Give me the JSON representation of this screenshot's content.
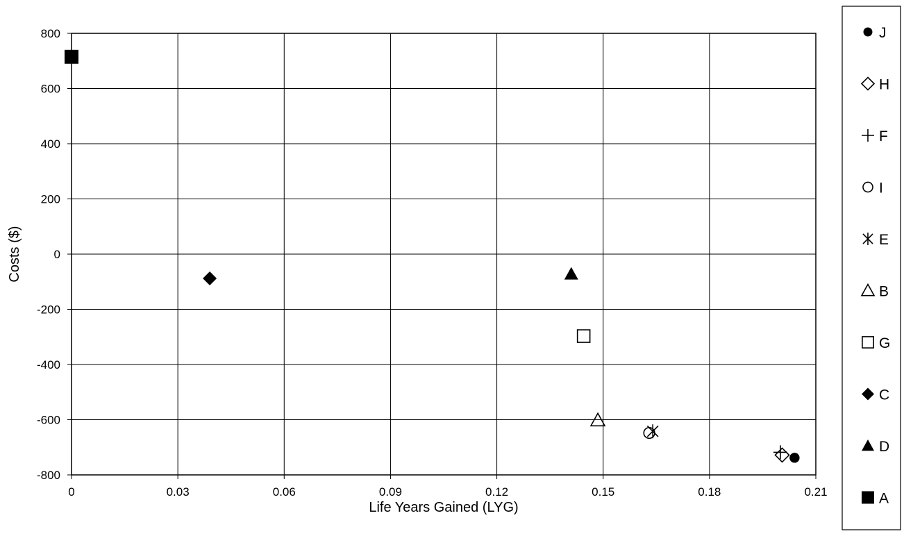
{
  "chart_data": {
    "type": "scatter",
    "title": "",
    "xlabel": "Life Years Gained (LYG)",
    "ylabel": "Costs ($)",
    "xlim": [
      0,
      0.21
    ],
    "ylim": [
      -800,
      800
    ],
    "x_ticks": [
      "0",
      "0.03",
      "0.06",
      "0.09",
      "0.12",
      "0.15",
      "0.18",
      "0.21"
    ],
    "y_ticks": [
      "800",
      "600",
      "400",
      "200",
      "0",
      "-200",
      "-400",
      "-600",
      "-800"
    ],
    "x_tick_values": [
      0,
      0.03,
      0.06,
      0.09,
      0.12,
      0.15,
      0.18,
      0.21
    ],
    "y_tick_values": [
      800,
      600,
      400,
      200,
      0,
      -200,
      -400,
      -600,
      -800
    ],
    "grid": true,
    "legend_position": "right",
    "series": [
      {
        "name": "J",
        "marker": "circle-filled",
        "x": [
          0.204
        ],
        "y": [
          -738
        ]
      },
      {
        "name": "H",
        "marker": "diamond-open",
        "x": [
          0.2005
        ],
        "y": [
          -728
        ]
      },
      {
        "name": "F",
        "marker": "plus",
        "x": [
          0.2
        ],
        "y": [
          -718
        ]
      },
      {
        "name": "I",
        "marker": "circle-open",
        "x": [
          0.163
        ],
        "y": [
          -648
        ]
      },
      {
        "name": "E",
        "marker": "asterisk",
        "x": [
          0.164
        ],
        "y": [
          -642
        ]
      },
      {
        "name": "B",
        "marker": "triangle-open",
        "x": [
          0.1485
        ],
        "y": [
          -602
        ]
      },
      {
        "name": "G",
        "marker": "square-open",
        "x": [
          0.1445
        ],
        "y": [
          -297
        ]
      },
      {
        "name": "C",
        "marker": "diamond-filled",
        "x": [
          0.039
        ],
        "y": [
          -88
        ]
      },
      {
        "name": "D",
        "marker": "triangle-filled",
        "x": [
          0.141
        ],
        "y": [
          -72
        ]
      },
      {
        "name": "A",
        "marker": "square-filled",
        "x": [
          0
        ],
        "y": [
          715
        ]
      }
    ]
  }
}
